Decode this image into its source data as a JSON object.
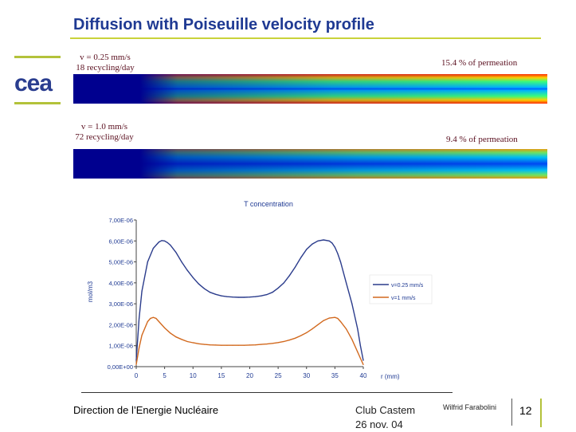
{
  "title": "Diffusion with Poiseuille velocity profile",
  "logo_text": "cea",
  "colors": {
    "title": "#1f3a93",
    "accent": "#c9d23a",
    "label": "#5a0f1f",
    "series1": "#2b3c8c",
    "series2": "#d2691e"
  },
  "cases": [
    {
      "velocity": "v = 0.25 mm/s",
      "recycling": "18 recycling/day",
      "permeation": "15.4 % of permeation"
    },
    {
      "velocity": "v = 1.0 mm/s",
      "recycling": "72 recycling/day",
      "permeation": "9.4 % of permeation"
    }
  ],
  "chart_data": {
    "type": "line",
    "title": "T concentration",
    "xlabel": "r (mm)",
    "ylabel": "mol/m3",
    "xlim": [
      0,
      40
    ],
    "ylim": [
      0,
      7e-06
    ],
    "x_ticks": [
      0,
      5,
      10,
      15,
      20,
      25,
      30,
      35,
      40
    ],
    "x_tick_labels": [
      "0",
      "5",
      "10",
      "15",
      "20",
      "25",
      "30",
      "35",
      "40"
    ],
    "y_ticks": [
      0,
      1e-06,
      2e-06,
      3e-06,
      4e-06,
      5e-06,
      6e-06,
      7e-06
    ],
    "y_tick_labels": [
      "0,00E+00",
      "1,00E-06",
      "2,00E-06",
      "3,00E-06",
      "4,00E-06",
      "5,00E-06",
      "6,00E-06",
      "7,00E-06"
    ],
    "legend_position": "right",
    "grid": false,
    "series": [
      {
        "name": "v=0.25 mm/s",
        "x": [
          0,
          0.5,
          1,
          2,
          3,
          4,
          4.5,
          5,
          5.5,
          6,
          7,
          8,
          9,
          10,
          11,
          12,
          13,
          14,
          15,
          16,
          17,
          18,
          19,
          20,
          21,
          22,
          23,
          24,
          25,
          26,
          27,
          28,
          29,
          30,
          31,
          32,
          33,
          34,
          34.5,
          35,
          35.5,
          36,
          37,
          38,
          39,
          39.5,
          40
        ],
        "values": [
          3e-07,
          2.3e-06,
          3.6e-06,
          5e-06,
          5.65e-06,
          5.95e-06,
          6.02e-06,
          6e-06,
          5.92e-06,
          5.8e-06,
          5.45e-06,
          5e-06,
          4.6e-06,
          4.25e-06,
          3.95e-06,
          3.72e-06,
          3.55e-06,
          3.45e-06,
          3.38e-06,
          3.34e-06,
          3.32e-06,
          3.31e-06,
          3.31e-06,
          3.32e-06,
          3.34e-06,
          3.38e-06,
          3.44e-06,
          3.55e-06,
          3.75e-06,
          4e-06,
          4.35e-06,
          4.75e-06,
          5.2e-06,
          5.6e-06,
          5.85e-06,
          6e-06,
          6.05e-06,
          6e-06,
          5.9e-06,
          5.7e-06,
          5.4e-06,
          5e-06,
          4e-06,
          3e-06,
          1.8e-06,
          1e-06,
          3e-07
        ]
      },
      {
        "name": "v=1 mm/s",
        "x": [
          0,
          0.5,
          1,
          2,
          2.5,
          3,
          3.5,
          4,
          5,
          6,
          7,
          8,
          9,
          10,
          11,
          12,
          13,
          14,
          15,
          16,
          17,
          18,
          19,
          20,
          21,
          22,
          23,
          24,
          25,
          26,
          27,
          28,
          29,
          30,
          31,
          32,
          33,
          34,
          35,
          35.5,
          36,
          37,
          38,
          39,
          39.5,
          40
        ],
        "values": [
          1e-07,
          9e-07,
          1.5e-06,
          2.15e-06,
          2.3e-06,
          2.35e-06,
          2.3e-06,
          2.15e-06,
          1.85e-06,
          1.6e-06,
          1.42e-06,
          1.3e-06,
          1.2e-06,
          1.14e-06,
          1.09e-06,
          1.06e-06,
          1.04e-06,
          1.03e-06,
          1.02e-06,
          1.02e-06,
          1.02e-06,
          1.02e-06,
          1.02e-06,
          1.03e-06,
          1.04e-06,
          1.06e-06,
          1.08e-06,
          1.11e-06,
          1.15e-06,
          1.2e-06,
          1.27e-06,
          1.36e-06,
          1.48e-06,
          1.62e-06,
          1.8e-06,
          2e-06,
          2.2e-06,
          2.32e-06,
          2.35e-06,
          2.3e-06,
          2.15e-06,
          1.8e-06,
          1.3e-06,
          7e-07,
          4e-07,
          1e-07
        ]
      }
    ]
  },
  "footer": {
    "division": "Direction de l’Energie Nucléaire",
    "event": "Club Castem",
    "date": "26 nov. 04",
    "author": "Wilfrid Farabolini",
    "page": "12"
  }
}
